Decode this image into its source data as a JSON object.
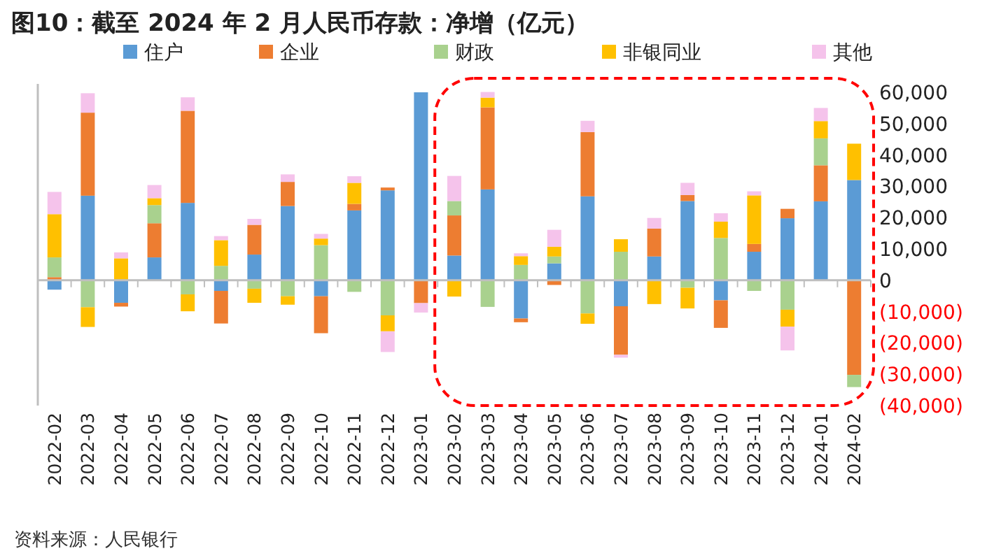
{
  "chart_data": {
    "type": "bar",
    "title": "图10：截至 2024 年 2 月人民币存款：净增（亿元）",
    "stacked": true,
    "legend": "top",
    "categories": [
      "2022-02",
      "2022-03",
      "2022-04",
      "2022-05",
      "2022-06",
      "2022-07",
      "2022-08",
      "2022-09",
      "2022-10",
      "2022-11",
      "2022-12",
      "2023-01",
      "2023-02",
      "2023-03",
      "2023-04",
      "2023-05",
      "2023-06",
      "2023-07",
      "2023-08",
      "2023-09",
      "2023-10",
      "2023-11",
      "2023-12",
      "2024-01",
      "2024-02"
    ],
    "series": [
      {
        "name": "住户",
        "color": "#5b9bd5",
        "values": [
          -3000,
          27000,
          -7200,
          7300,
          24700,
          -3400,
          8200,
          23700,
          -5100,
          22300,
          28700,
          60000,
          7900,
          29000,
          -12200,
          5400,
          26800,
          -8300,
          7600,
          25300,
          -6400,
          9100,
          19800,
          25200,
          32000
        ]
      },
      {
        "name": "企业",
        "color": "#ed7d31",
        "values": [
          1000,
          26500,
          -1200,
          10900,
          29400,
          -10400,
          9500,
          7700,
          -11800,
          2100,
          900,
          -7300,
          12800,
          26200,
          -1200,
          -1500,
          20500,
          -15500,
          8900,
          1900,
          -8800,
          2500,
          3000,
          11500,
          -30200
        ]
      },
      {
        "name": "财政",
        "color": "#a9d18e",
        "values": [
          6300,
          -8600,
          0,
          5800,
          -4500,
          4600,
          -2700,
          -5100,
          11200,
          -3700,
          -11200,
          0,
          4600,
          -8500,
          4900,
          2200,
          -10600,
          9100,
          0,
          -2400,
          13500,
          -3400,
          -9400,
          8600,
          -3900
        ]
      },
      {
        "name": "非银同业",
        "color": "#ffc000",
        "values": [
          13800,
          -6300,
          7000,
          2200,
          -5400,
          8200,
          -4500,
          -2700,
          2100,
          6700,
          -5100,
          0,
          -5200,
          3100,
          2800,
          3100,
          -3300,
          4000,
          -7600,
          -6600,
          5200,
          15500,
          -5400,
          5500,
          11600
        ]
      },
      {
        "name": "其他",
        "color": "#f5c3eb",
        "values": [
          7100,
          6200,
          1900,
          4200,
          4300,
          1300,
          1900,
          2400,
          1500,
          2100,
          -6600,
          -3000,
          8000,
          1800,
          900,
          5400,
          3600,
          -900,
          3400,
          3900,
          2700,
          1300,
          -7600,
          4200,
          0
        ]
      }
    ],
    "ylim": [
      -40000,
      60000
    ],
    "yticks": [
      {
        "value": 60000,
        "label": "60,000"
      },
      {
        "value": 50000,
        "label": "50,000"
      },
      {
        "value": 40000,
        "label": "40,000"
      },
      {
        "value": 30000,
        "label": "30,000"
      },
      {
        "value": 20000,
        "label": "20,000"
      },
      {
        "value": 10000,
        "label": "10,000"
      },
      0,
      {
        "value": -10000,
        "label": "(10,000)"
      },
      {
        "value": -20000,
        "label": "(20,000)"
      },
      {
        "value": -30000,
        "label": "(30,000)"
      },
      {
        "value": -40000,
        "label": "(40,000)"
      }
    ],
    "annotations": [
      "资料来源：人民银行"
    ]
  }
}
